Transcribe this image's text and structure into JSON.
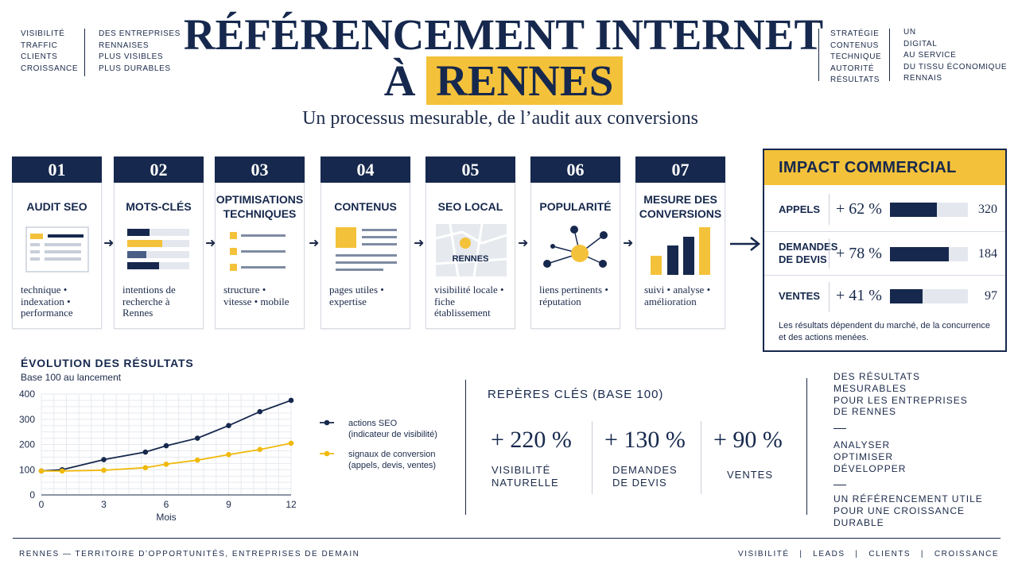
{
  "header": {
    "left_col1": [
      "VISIBILITÉ",
      "TRAFFIC",
      "CLIENTS",
      "CROISSANCE"
    ],
    "left_col2": [
      "DES ENTREPRISES",
      "RENNAISES",
      "PLUS VISIBLES",
      "PLUS DURABLES"
    ],
    "right_col1": [
      "STRATÉGIE",
      "CONTENUS",
      "TECHNIQUE",
      "AUTORITÉ",
      "RÉSULTATS"
    ],
    "right_col2": [
      "UN",
      "DIGITAL",
      "AU SERVICE",
      "DU TISSU ÉCONOMIQUE",
      "RENNAIS"
    ],
    "title_line1": "RÉFÉRENCEMENT INTERNET",
    "title_line2_prefix": "À",
    "title_line2_highlight": "RENNES",
    "subtitle": "Un processus mesurable, de l’audit aux conversions"
  },
  "steps": [
    {
      "num": "01",
      "title": "AUDIT SEO",
      "desc": "technique •\nindexation •\nperformance",
      "icon": "audit-document-icon"
    },
    {
      "num": "02",
      "title": "MOTS-CLÉS",
      "desc": "intentions de\nrecherche à Rennes",
      "icon": "keyword-bars-icon"
    },
    {
      "num": "03",
      "title": "OPTIMISATIONS TECHNIQUES",
      "desc": "structure •\nvitesse • mobile",
      "icon": "checklist-icon"
    },
    {
      "num": "04",
      "title": "CONTENUS",
      "desc": "pages utiles •\nexpertise",
      "icon": "article-icon"
    },
    {
      "num": "05",
      "title": "SEO LOCAL",
      "desc": "visibilité locale •\nfiche établissement",
      "icon": "map-pin-icon",
      "map_label": "RENNES"
    },
    {
      "num": "06",
      "title": "POPULARITÉ",
      "desc": "liens pertinents •\nréputation",
      "icon": "network-icon"
    },
    {
      "num": "07",
      "title": "MESURE DES CONVERSIONS",
      "desc": "suivi • analyse •\namélioration",
      "icon": "bar-growth-icon"
    }
  ],
  "impact": {
    "title": "IMPACT COMMERCIAL",
    "rows": [
      {
        "label": "APPELS",
        "pct": "+ 62 %",
        "value": "320",
        "fill": 0.6
      },
      {
        "label": "DEMANDES\nDE DEVIS",
        "pct": "+ 78 %",
        "value": "184",
        "fill": 0.75
      },
      {
        "label": "VENTES",
        "pct": "+ 41 %",
        "value": "97",
        "fill": 0.42
      }
    ],
    "note": "Les résultats dépendent du marché, de la concurrence et des actions menées."
  },
  "chart_data": {
    "type": "line",
    "title": "ÉVOLUTION DES RÉSULTATS",
    "subtitle": "Base 100 au lancement",
    "xlabel": "Mois",
    "ylabel": "",
    "xlim": [
      0,
      12
    ],
    "ylim": [
      0,
      400
    ],
    "xticks": [
      0,
      3,
      6,
      9,
      12
    ],
    "yticks": [
      0,
      100,
      200,
      300,
      400
    ],
    "grid": true,
    "legend_position": "right",
    "series": [
      {
        "name": "actions SEO\n(indicateur de visibilité)",
        "color": "#16284d",
        "x": [
          0,
          1,
          3,
          5,
          6,
          7.5,
          9,
          10.5,
          12
        ],
        "y": [
          95,
          100,
          140,
          170,
          195,
          225,
          275,
          330,
          375
        ]
      },
      {
        "name": "signaux de conversion\n(appels, devis, ventes)",
        "color": "#f0b90b",
        "x": [
          0,
          1,
          3,
          5,
          6,
          7.5,
          9,
          10.5,
          12
        ],
        "y": [
          95,
          95,
          98,
          108,
          122,
          138,
          160,
          180,
          205
        ]
      }
    ]
  },
  "reperes": {
    "title": "REPÈRES CLÉS (BASE 100)",
    "items": [
      {
        "value": "+ 220 %",
        "label": "VISIBILITÉ\nNATURELLE"
      },
      {
        "value": "+ 130 %",
        "label": "DEMANDES\nDE DEVIS"
      },
      {
        "value": "+ 90 %",
        "label": "VENTES"
      }
    ]
  },
  "right_block": {
    "block1": "DES RÉSULTATS\nMESURABLES\nPOUR LES ENTREPRISES\nDE RENNES",
    "block2": "ANALYSER\nOPTIMISER\nDÉVELOPPER",
    "block3": "UN RÉFÉRENCEMENT UTILE\nPOUR UNE CROISSANCE DURABLE"
  },
  "footer": {
    "left": "RENNES — TERRITOIRE D’OPPORTUNITÉS, ENTREPRISES DE DEMAIN",
    "right": [
      "VISIBILITÉ",
      "LEADS",
      "CLIENTS",
      "CROISSANCE"
    ]
  },
  "colors": {
    "navy": "#16284d",
    "yellow": "#f4c23a",
    "gray": "#e4e8ee"
  }
}
